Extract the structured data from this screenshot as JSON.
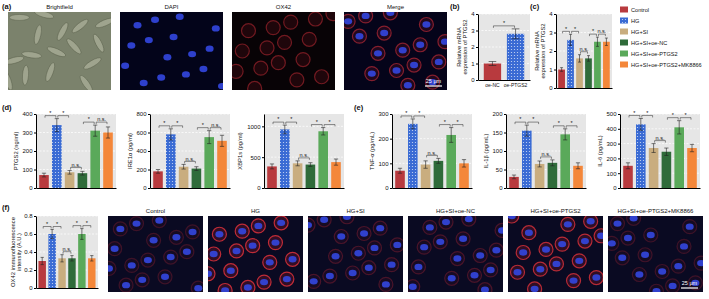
{
  "chart_data": [
    {
      "type": "bar",
      "y_label": "Relative mRNA expression of PTGS2",
      "categories": [
        "oe-NC",
        "oe-PTGS2"
      ],
      "values": [
        1.0,
        2.8
      ],
      "errors": [
        0.12,
        0.3
      ],
      "colors": [
        "#b83a3e",
        "#3a6bd4"
      ],
      "ylim": [
        0,
        4
      ],
      "yticks": [
        0,
        1,
        2,
        3,
        4
      ],
      "grid": true,
      "annotations": [
        {
          "text": "*",
          "between": [
            0,
            1
          ]
        }
      ]
    },
    {
      "type": "bar",
      "y_label": "Relative mRNA expression of PTGS2",
      "tick_labels": "y",
      "values": [
        1.0,
        2.6,
        1.6,
        1.6,
        2.5,
        2.5
      ],
      "errors": [
        0.1,
        0.3,
        0.2,
        0.15,
        0.25,
        0.2
      ],
      "colors": [
        "#b83a3e",
        "#3a6bd4",
        "#c9ad7f",
        "#2f6b3a",
        "#5aa95a",
        "#f4873a"
      ],
      "ylim": [
        0,
        4
      ],
      "yticks": [
        0,
        1,
        2,
        3,
        4
      ],
      "grid": true,
      "annotations": [
        {
          "text": "*",
          "between": [
            0,
            1
          ]
        },
        {
          "text": "*",
          "between": [
            1,
            2
          ]
        },
        {
          "text": "n.s.",
          "between": [
            2,
            3
          ]
        },
        {
          "text": "*",
          "between": [
            3,
            4
          ]
        },
        {
          "text": "n.s.",
          "between": [
            4,
            5
          ]
        }
      ]
    },
    {
      "type": "bar",
      "y_label": "PTGS2 (ng/ml)",
      "tick_labels": "y",
      "values": [
        70,
        340,
        85,
        80,
        310,
        300
      ],
      "errors": [
        10,
        35,
        10,
        10,
        30,
        30
      ],
      "colors": [
        "#b83a3e",
        "#3a6bd4",
        "#c9ad7f",
        "#2f6b3a",
        "#5aa95a",
        "#f4873a"
      ],
      "ylim": [
        0,
        400
      ],
      "yticks": [
        0,
        100,
        200,
        300,
        400
      ],
      "grid": true,
      "annotations": [
        {
          "text": "*",
          "between": [
            0,
            1
          ]
        },
        {
          "text": "*",
          "between": [
            1,
            2
          ]
        },
        {
          "text": "n.s.",
          "between": [
            2,
            3
          ]
        },
        {
          "text": "*",
          "between": [
            3,
            4
          ]
        },
        {
          "text": "n.s.",
          "between": [
            4,
            5
          ]
        }
      ]
    },
    {
      "type": "bar",
      "y_label": "IRE1α (pg/ml)",
      "tick_labels": "y",
      "values": [
        180,
        580,
        230,
        210,
        550,
        510
      ],
      "errors": [
        20,
        60,
        25,
        20,
        70,
        60
      ],
      "colors": [
        "#b83a3e",
        "#3a6bd4",
        "#c9ad7f",
        "#2f6b3a",
        "#5aa95a",
        "#f4873a"
      ],
      "ylim": [
        0,
        800
      ],
      "yticks": [
        0,
        200,
        400,
        600,
        800
      ],
      "grid": true,
      "annotations": [
        {
          "text": "*",
          "between": [
            0,
            1
          ]
        },
        {
          "text": "*",
          "between": [
            1,
            2
          ]
        },
        {
          "text": "n.s.",
          "between": [
            2,
            3
          ]
        },
        {
          "text": "*",
          "between": [
            3,
            4
          ]
        },
        {
          "text": "n.s.",
          "between": [
            4,
            5
          ]
        }
      ]
    },
    {
      "type": "bar",
      "y_label": "XBP1s (pg/ml)",
      "tick_labels": "y",
      "values": [
        350,
        950,
        400,
        380,
        920,
        420
      ],
      "errors": [
        40,
        70,
        40,
        30,
        60,
        50
      ],
      "colors": [
        "#b83a3e",
        "#3a6bd4",
        "#c9ad7f",
        "#2f6b3a",
        "#5aa95a",
        "#f4873a"
      ],
      "ylim": [
        0,
        1200
      ],
      "yticks": [
        0,
        500,
        1000
      ],
      "grid": true,
      "annotations": [
        {
          "text": "*",
          "between": [
            0,
            1
          ]
        },
        {
          "text": "*",
          "between": [
            1,
            2
          ]
        },
        {
          "text": "n.s.",
          "between": [
            2,
            3
          ]
        },
        {
          "text": "*",
          "between": [
            3,
            4
          ]
        },
        {
          "text": "*",
          "between": [
            4,
            5
          ]
        }
      ]
    },
    {
      "type": "bar",
      "y_label": "TNF-α (pg/mL)",
      "tick_labels": "y",
      "values": [
        70,
        260,
        95,
        110,
        215,
        100
      ],
      "errors": [
        10,
        20,
        15,
        10,
        30,
        15
      ],
      "colors": [
        "#b83a3e",
        "#3a6bd4",
        "#c9ad7f",
        "#2f6b3a",
        "#5aa95a",
        "#f4873a"
      ],
      "ylim": [
        0,
        300
      ],
      "yticks": [
        0,
        100,
        200,
        300
      ],
      "grid": true,
      "annotations": [
        {
          "text": "*",
          "between": [
            0,
            1
          ]
        },
        {
          "text": "*",
          "between": [
            1,
            2
          ]
        },
        {
          "text": "n.s.",
          "between": [
            2,
            3
          ]
        },
        {
          "text": "*",
          "between": [
            3,
            4
          ]
        },
        {
          "text": "*",
          "between": [
            4,
            5
          ]
        }
      ]
    },
    {
      "type": "bar",
      "y_label": "IL-1β (pg/mL)",
      "tick_labels": "y",
      "values": [
        30,
        155,
        65,
        68,
        145,
        60
      ],
      "errors": [
        5,
        15,
        8,
        8,
        15,
        8
      ],
      "colors": [
        "#b83a3e",
        "#3a6bd4",
        "#c9ad7f",
        "#2f6b3a",
        "#5aa95a",
        "#f4873a"
      ],
      "ylim": [
        0,
        200
      ],
      "yticks": [
        0,
        50,
        100,
        150,
        200
      ],
      "grid": true,
      "annotations": [
        {
          "text": "*",
          "between": [
            0,
            1
          ]
        },
        {
          "text": "*",
          "between": [
            1,
            2
          ]
        },
        {
          "text": "n.s.",
          "between": [
            2,
            3
          ]
        },
        {
          "text": "*",
          "between": [
            3,
            4
          ]
        },
        {
          "text": "*",
          "between": [
            4,
            5
          ]
        }
      ]
    },
    {
      "type": "bar",
      "y_label": "IL-6 (pg/mL)",
      "tick_labels": "y",
      "values": [
        150,
        430,
        270,
        245,
        410,
        270
      ],
      "errors": [
        20,
        40,
        30,
        25,
        45,
        25
      ],
      "colors": [
        "#b83a3e",
        "#3a6bd4",
        "#c9ad7f",
        "#2f6b3a",
        "#5aa95a",
        "#f4873a"
      ],
      "ylim": [
        0,
        500
      ],
      "yticks": [
        0,
        100,
        200,
        300,
        400,
        500
      ],
      "grid": true,
      "annotations": [
        {
          "text": "*",
          "between": [
            0,
            1
          ]
        },
        {
          "text": "*",
          "between": [
            1,
            2
          ]
        },
        {
          "text": "n.s.",
          "between": [
            2,
            3
          ]
        },
        {
          "text": "*",
          "between": [
            3,
            4
          ]
        },
        {
          "text": "*",
          "between": [
            4,
            5
          ]
        }
      ]
    },
    {
      "type": "bar",
      "y_label": "OX42 immunofluorescence intensity (A.U.)",
      "tick_labels": "y",
      "values": [
        0.3,
        0.6,
        0.33,
        0.33,
        0.6,
        0.33
      ],
      "errors": [
        0.04,
        0.05,
        0.04,
        0.03,
        0.06,
        0.03
      ],
      "colors": [
        "#b83a3e",
        "#3a6bd4",
        "#c9ad7f",
        "#2f6b3a",
        "#5aa95a",
        "#f4873a"
      ],
      "ylim": [
        0,
        0.8
      ],
      "yticks": [
        0,
        0.2,
        0.4,
        0.6,
        0.8
      ],
      "grid": true,
      "annotations": [
        {
          "text": "*",
          "between": [
            0,
            1
          ]
        },
        {
          "text": "*",
          "between": [
            1,
            2
          ]
        },
        {
          "text": "n.s.",
          "between": [
            2,
            3
          ]
        },
        {
          "text": "*",
          "between": [
            3,
            4
          ]
        },
        {
          "text": "*",
          "between": [
            4,
            5
          ]
        }
      ]
    }
  ],
  "panel_labels": [
    "(a)",
    "(b)",
    "(c)",
    "(d)",
    "(e)",
    "(f)"
  ],
  "legend_panel": {
    "names": [
      "Control",
      "HG",
      "HG+SI",
      "HG+SI+oe-NC",
      "HG+SI+oe-PTGS2",
      "HG+SI+oe-PTGS2+MK8866"
    ],
    "colors": [
      "#b83a3e",
      "#3a6bd4",
      "#c9ad7f",
      "#2f6b3a",
      "#5aa95a",
      "#f4873a"
    ]
  },
  "image_panels": [
    {
      "titles": [
        "Brightfield",
        "DAPI",
        "OX42",
        "Merge"
      ],
      "scale_bar": "25 μm"
    },
    {
      "titles": [
        "Control",
        "HG",
        "HG+SI",
        "HG+SI+oe-NC",
        "HG+SI+oe-PTGS2",
        "HG+SI+oe-PTGS2+MK8866"
      ],
      "scale_bar": "25 μm"
    }
  ]
}
